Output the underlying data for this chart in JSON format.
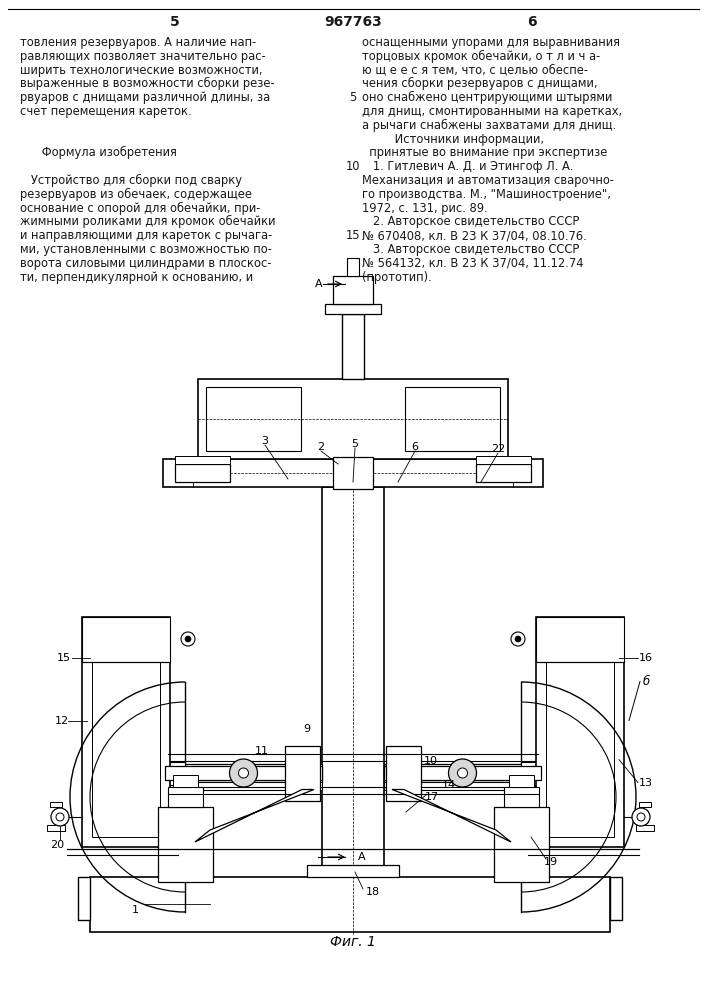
{
  "page_number_left": "5",
  "page_number_center": "967763",
  "page_number_right": "6",
  "left_col": [
    "товления резервуаров. А наличие нап-",
    "равляющих позволяет значительно рас-",
    "ширить технологические возможности,",
    "выраженные в возможности сборки резе-",
    "рвуаров с днищами различной длины, за",
    "счет перемещения кареток.",
    "",
    "",
    "      Формула изобретения",
    "",
    "   Устройство для сборки под сварку",
    "резервуаров из обечаек, содержащее",
    "основание с опорой для обечайки, при-",
    "жимными роликами для кромок обечайки",
    "и направляющими для кареток с рычага-",
    "ми, установленными с возможностью по-",
    "ворота силовыми цилиндрами в плоскос-",
    "ти, перпендикулярной к основанию, и"
  ],
  "right_col": [
    "оснащенными упорами для выравнивания",
    "торцовых кромок обечайки, о т л и ч а-",
    "ю щ е е с я тем, что, с целью обеспе-",
    "чения сборки резервуаров с днищами,",
    "оно снабжено центрирующими штырями",
    "для днищ, смонтированными на каретках,",
    "а рычаги снабжены захватами для днищ.",
    "         Источники информации,",
    "  принятые во внимание при экспертизе",
    "   1. Гитлевич А. Д. и Этингоф Л. А.",
    "Механизация и автоматизация сварочно-",
    "го производства. М., \"Машиностроение\",",
    "1972, с. 131, рис. 89.",
    "   2. Авторское свидетельство СССР",
    "№ 670408, кл. В 23 К 37/04, 08.10.76.",
    "   3. Авторское свидетельство СССР",
    "№ 564132, кл. В 23 К 37/04, 11.12.74",
    "(прототип)."
  ],
  "fig_label": "Фиг. 1",
  "bg_color": "#ffffff",
  "text_color": "#1a1a1a",
  "font_size": 8.3,
  "header_font_size": 10
}
